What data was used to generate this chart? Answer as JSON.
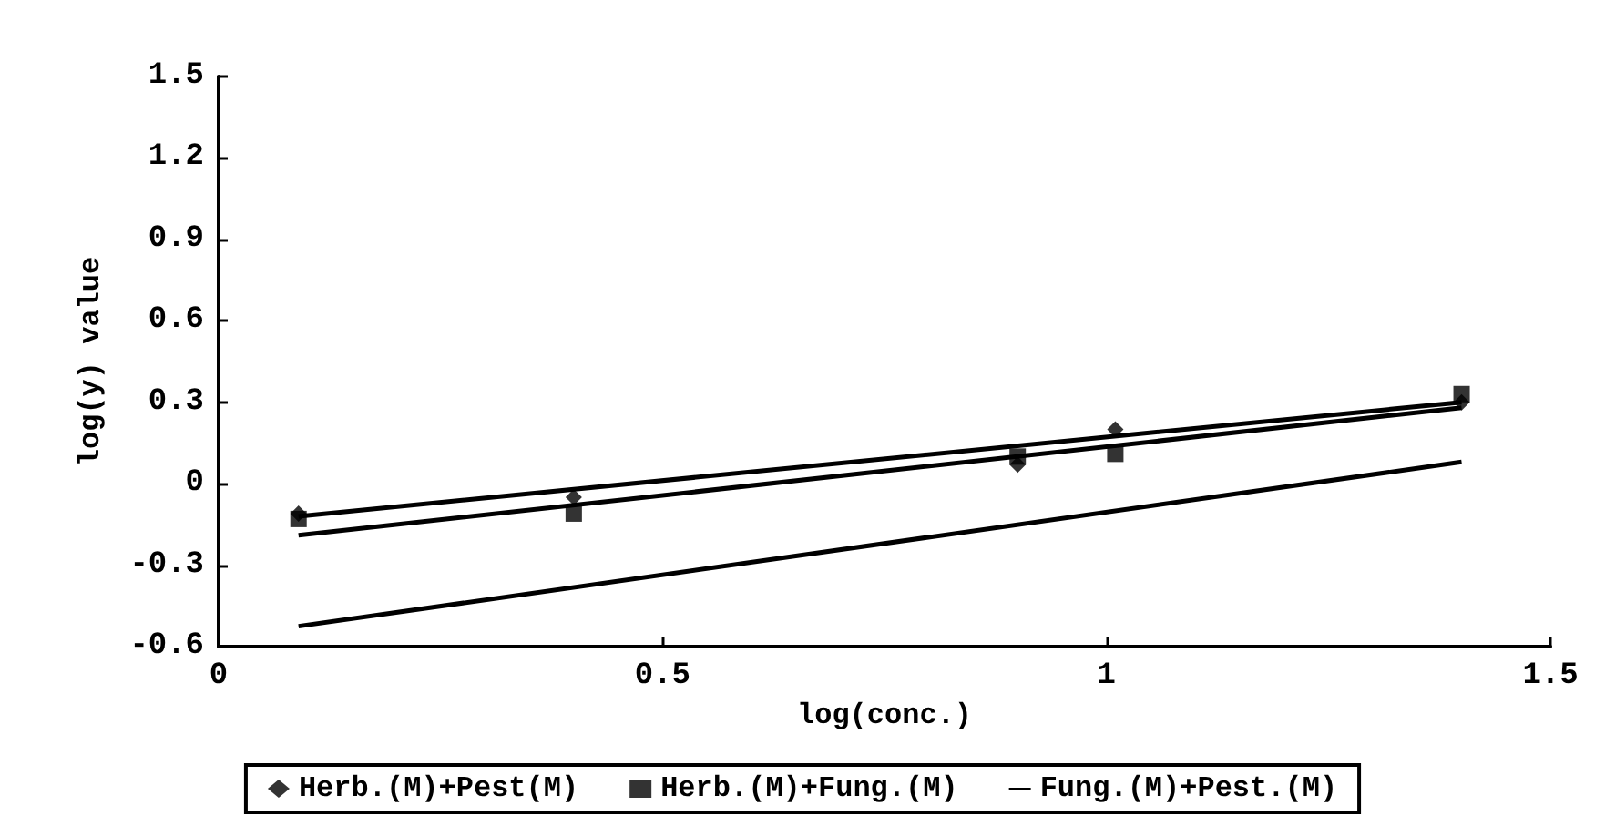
{
  "chart_data": {
    "type": "scatter",
    "xlabel": "log(conc.)",
    "ylabel": "log(y) value",
    "xlim": [
      0,
      1.5
    ],
    "xticks": [
      0,
      0.5,
      1,
      1.5
    ],
    "ylim": [
      -0.6,
      1.5
    ],
    "yticks": [
      -0.6,
      -0.3,
      0,
      0.3,
      0.6,
      0.9,
      1.2,
      1.5
    ],
    "grid": false,
    "legend": "bottom",
    "series": [
      {
        "name": "Herb.(M)+Pest(M)",
        "marker": "diamond",
        "color": "#000000",
        "x": [
          0.09,
          0.4,
          0.9,
          1.01,
          1.4
        ],
        "values": [
          -0.11,
          -0.05,
          0.07,
          0.2,
          0.3
        ]
      },
      {
        "name": "Herb.(M)+Fung.(M)",
        "marker": "square",
        "color": "#000000",
        "x": [
          0.09,
          0.4,
          0.9,
          1.01,
          1.4
        ],
        "values": [
          -0.13,
          -0.11,
          0.1,
          0.11,
          0.33
        ]
      },
      {
        "type": "line",
        "marker": "none",
        "color": "#000000",
        "x": [
          0.09,
          1.4
        ],
        "values": [
          -0.12,
          0.3
        ]
      },
      {
        "type": "line",
        "marker": "none",
        "color": "#000000",
        "x": [
          0.09,
          1.4
        ],
        "values": [
          -0.19,
          0.28
        ]
      },
      {
        "name": "Fung.(M)+Pest.(M)",
        "type": "line",
        "marker": "none",
        "color": "#000000",
        "x": [
          0.09,
          1.4
        ],
        "values": [
          -0.525,
          0.08
        ]
      }
    ]
  }
}
